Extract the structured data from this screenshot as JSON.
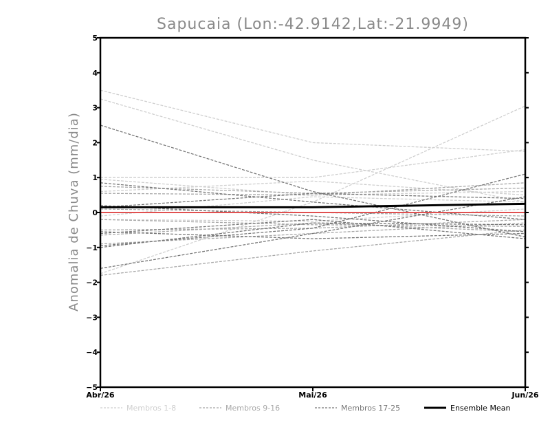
{
  "chart_data": {
    "type": "line",
    "title": "Sapucaia (Lon:-42.9142,Lat:-21.9949)",
    "xlabel": "",
    "ylabel": "Anomalia de Chuva (mm/dia)",
    "categories": [
      "Abr/26",
      "Mai/26",
      "Jun/26"
    ],
    "ylim": [
      -5,
      5
    ],
    "yticks": [
      -5,
      -4,
      -3,
      -2,
      -1,
      0,
      1,
      2,
      3,
      4,
      5
    ],
    "grid": false,
    "groups": [
      {
        "name": "Membros 1-8",
        "color": "#cfcfcf"
      },
      {
        "name": "Membros 9-16",
        "color": "#a8a8a8"
      },
      {
        "name": "Membros 17-25",
        "color": "#777777"
      }
    ],
    "ensemble_mean": {
      "name": "Ensemble Mean",
      "color": "#000000",
      "values": [
        0.15,
        0.15,
        0.25
      ]
    },
    "zero_line": {
      "color": "#e05050",
      "values": [
        0,
        0,
        0
      ]
    },
    "members": [
      {
        "group": 0,
        "values": [
          3.5,
          2.0,
          1.75
        ]
      },
      {
        "group": 0,
        "values": [
          3.25,
          1.5,
          0.3
        ]
      },
      {
        "group": 0,
        "values": [
          1.0,
          1.0,
          1.8
        ]
      },
      {
        "group": 0,
        "values": [
          0.95,
          0.5,
          0.6
        ]
      },
      {
        "group": 0,
        "values": [
          0.6,
          0.9,
          0.5
        ]
      },
      {
        "group": 0,
        "values": [
          -0.1,
          0.45,
          0.3
        ]
      },
      {
        "group": 0,
        "values": [
          -0.2,
          -0.25,
          0.1
        ]
      },
      {
        "group": 0,
        "values": [
          -1.75,
          0.3,
          3.05
        ]
      },
      {
        "group": 1,
        "values": [
          0.75,
          0.55,
          0.7
        ]
      },
      {
        "group": 1,
        "values": [
          0.55,
          0.5,
          0.85
        ]
      },
      {
        "group": 1,
        "values": [
          0.1,
          0.0,
          -0.1
        ]
      },
      {
        "group": 1,
        "values": [
          -0.2,
          -0.35,
          -0.4
        ]
      },
      {
        "group": 1,
        "values": [
          -0.5,
          -0.45,
          -0.2
        ]
      },
      {
        "group": 1,
        "values": [
          -0.65,
          -0.3,
          -0.55
        ]
      },
      {
        "group": 1,
        "values": [
          -1.8,
          -1.1,
          -0.5
        ]
      },
      {
        "group": 1,
        "values": [
          -0.9,
          -0.6,
          -0.3
        ]
      },
      {
        "group": 2,
        "values": [
          2.5,
          0.6,
          -0.7
        ]
      },
      {
        "group": 2,
        "values": [
          0.85,
          0.3,
          -0.2
        ]
      },
      {
        "group": 2,
        "values": [
          0.2,
          -0.1,
          -0.55
        ]
      },
      {
        "group": 2,
        "values": [
          0.15,
          0.55,
          0.4
        ]
      },
      {
        "group": 2,
        "values": [
          -0.55,
          -0.75,
          -0.6
        ]
      },
      {
        "group": 2,
        "values": [
          -0.95,
          -0.45,
          1.1
        ]
      },
      {
        "group": 2,
        "values": [
          -1.0,
          -0.3,
          -0.35
        ]
      },
      {
        "group": 2,
        "values": [
          -1.6,
          -0.6,
          0.45
        ]
      },
      {
        "group": 2,
        "values": [
          -0.6,
          -0.2,
          -0.75
        ]
      }
    ]
  }
}
